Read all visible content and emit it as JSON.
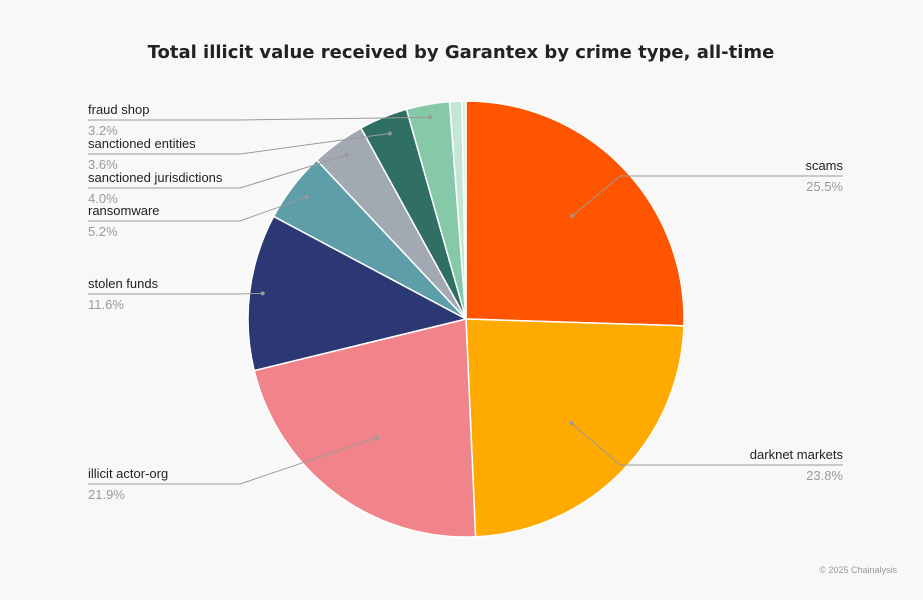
{
  "chart_data": {
    "type": "pie",
    "title": "Total illicit value received by Garantex by crime type, all-time",
    "slices": [
      {
        "label": "scams",
        "pct": "25.5%",
        "value": 25.5,
        "color": "#ff5500"
      },
      {
        "label": "darknet markets",
        "pct": "23.8%",
        "value": 23.8,
        "color": "#ffaa00"
      },
      {
        "label": "illicit actor-org",
        "pct": "21.9%",
        "value": 21.9,
        "color": "#f0848a"
      },
      {
        "label": "stolen funds",
        "pct": "11.6%",
        "value": 11.6,
        "color": "#2b3873"
      },
      {
        "label": "ransomware",
        "pct": "5.2%",
        "value": 5.2,
        "color": "#5e9ea9"
      },
      {
        "label": "sanctioned jurisdictions",
        "pct": "4.0%",
        "value": 4.0,
        "color": "#a3a9b3"
      },
      {
        "label": "sanctioned entities",
        "pct": "3.6%",
        "value": 3.6,
        "color": "#2f6f64"
      },
      {
        "label": "fraud shop",
        "pct": "3.2%",
        "value": 3.2,
        "color": "#86c9a8"
      },
      {
        "label": "",
        "pct": "",
        "value": 0.9,
        "color": "#c4e6d4"
      },
      {
        "label": "",
        "pct": "",
        "value": 0.3,
        "color": "#e8e8e8"
      }
    ],
    "legend": "none",
    "credit": "© 2025 Chainalysis"
  }
}
